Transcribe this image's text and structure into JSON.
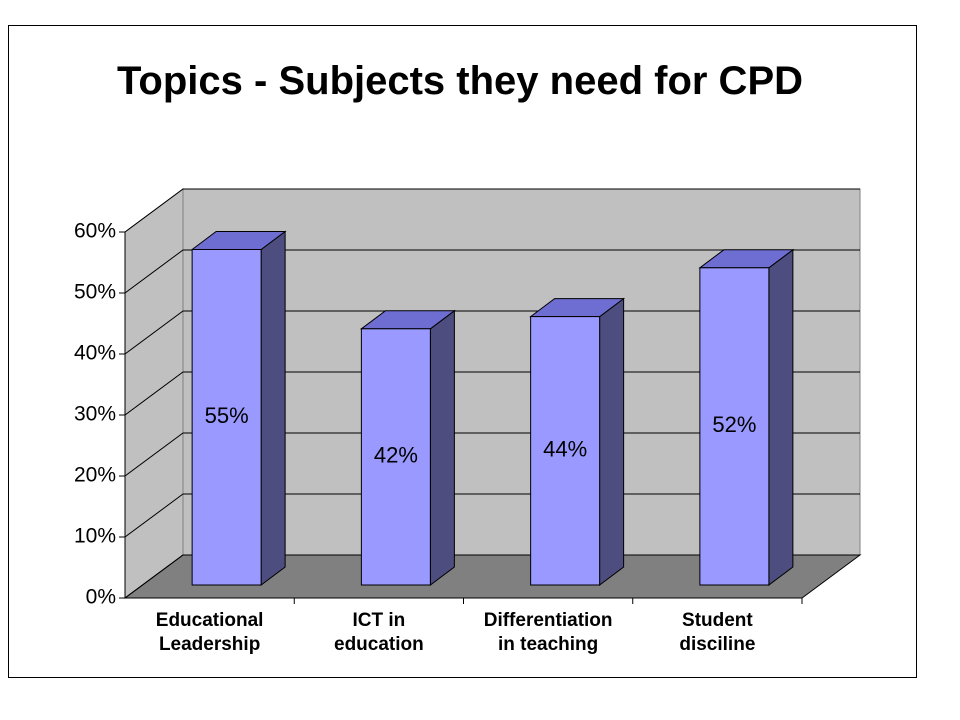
{
  "chart_data": {
    "type": "bar3d",
    "title": "Topics - Subjects they need for CPD",
    "categories": [
      "Educational\nLeadership",
      "ICT in\neducation",
      "Differentiation\nin teaching",
      "Student\ndisciline"
    ],
    "values": [
      55,
      42,
      44,
      52
    ],
    "value_labels": [
      "55%",
      "42%",
      "44%",
      "52%"
    ],
    "color": "#9999ff",
    "ylim": [
      0,
      60
    ],
    "yticks": [
      {
        "value": 0,
        "label": "0%"
      },
      {
        "value": 10,
        "label": "10%"
      },
      {
        "value": 20,
        "label": "20%"
      },
      {
        "value": 30,
        "label": "30%"
      },
      {
        "value": 40,
        "label": "40%"
      },
      {
        "value": 50,
        "label": "50%"
      },
      {
        "value": 60,
        "label": "60%"
      }
    ],
    "grid": true
  }
}
